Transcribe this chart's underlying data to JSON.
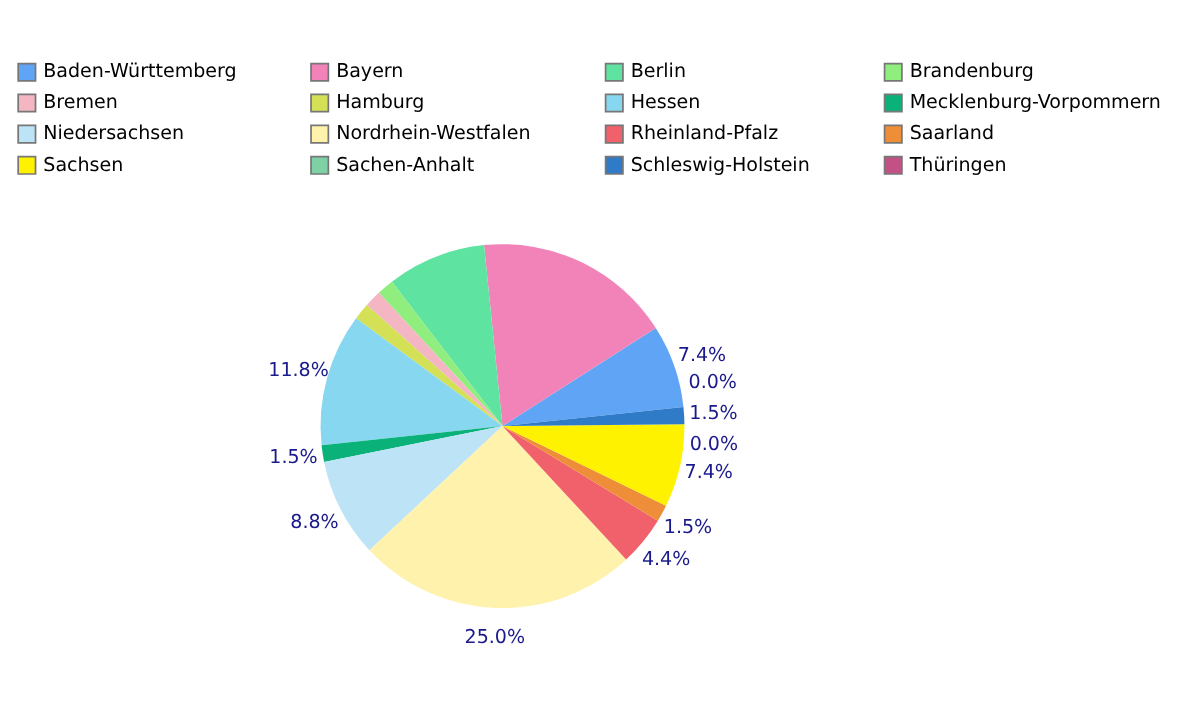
{
  "chart_data": {
    "type": "pie",
    "categories": [
      "Baden-Württemberg",
      "Bayern",
      "Berlin",
      "Brandenburg",
      "Bremen",
      "Hamburg",
      "Hessen",
      "Mecklenburg-Vorpommern",
      "Niedersachsen",
      "Nordrhein-Westfalen",
      "Rheinland-Pfalz",
      "Saarland",
      "Sachsen",
      "Sachen-Anhalt",
      "Schleswig-Holstein",
      "Thüringen"
    ],
    "values": [
      7.4,
      17.6,
      8.8,
      1.5,
      1.5,
      1.5,
      11.8,
      1.5,
      8.8,
      25.0,
      4.4,
      1.5,
      7.4,
      0.0,
      1.5,
      0.0
    ],
    "value_labels": [
      "7.4%",
      null,
      null,
      null,
      null,
      null,
      "11.8%",
      "1.5%",
      "8.8%",
      "25.0%",
      "4.4%",
      "1.5%",
      "7.4%",
      "0.0%",
      "1.5%",
      "0.0%"
    ],
    "colors": [
      "#60a5f5",
      "#f283b8",
      "#5fe3a1",
      "#90ee7e",
      "#f4b6c2",
      "#d4e157",
      "#87d7f0",
      "#0ab27a",
      "#bde3f7",
      "#fff2ad",
      "#f0616b",
      "#ee8e38",
      "#fff200",
      "#7ed1a4",
      "#2f7bc8",
      "#c25284"
    ],
    "legend": "top"
  }
}
